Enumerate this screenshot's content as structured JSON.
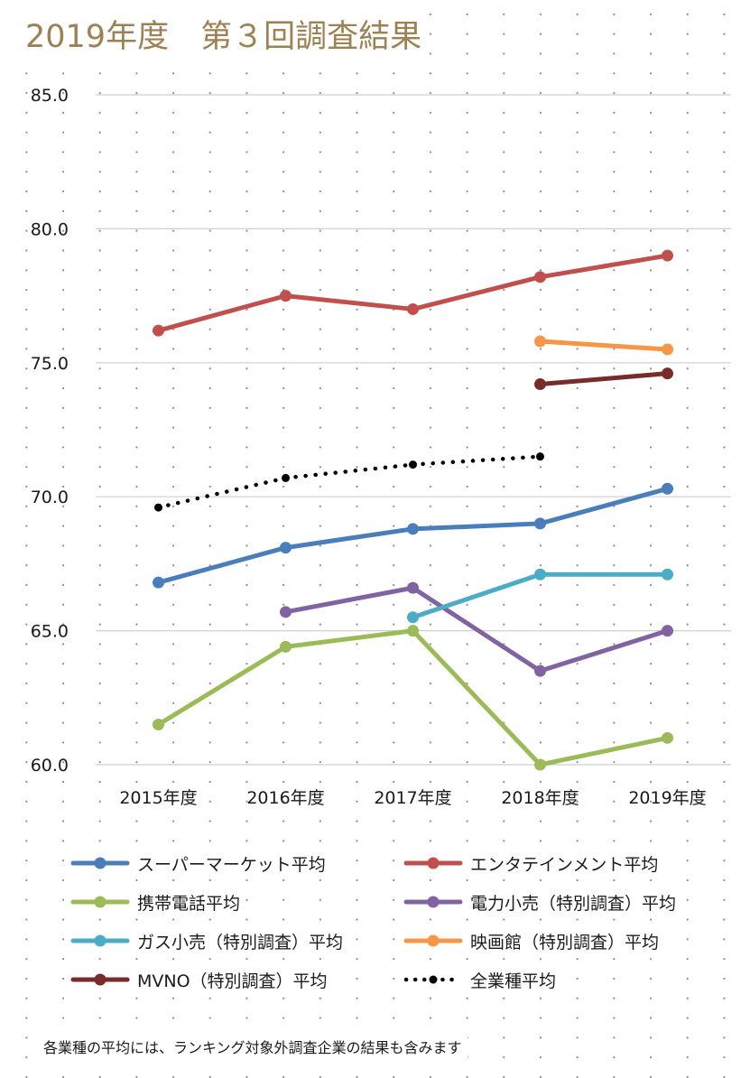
{
  "chart_data": {
    "type": "line",
    "title": "2019年度　第３回調査結果",
    "categories": [
      "2015年度",
      "2016年度",
      "2017年度",
      "2018年度",
      "2019年度"
    ],
    "ylim": [
      60.0,
      85.0
    ],
    "yticks": [
      "60.0",
      "65.0",
      "70.0",
      "75.0",
      "80.0",
      "85.0"
    ],
    "grid": true,
    "legend_position": "bottom",
    "series": [
      {
        "name": "スーパーマーケット平均",
        "color": "#4a7ebb",
        "style": "solid",
        "values": [
          66.8,
          68.1,
          68.8,
          69.0,
          70.3
        ]
      },
      {
        "name": "エンタテインメント平均",
        "color": "#c0504d",
        "style": "solid",
        "values": [
          76.2,
          77.5,
          77.0,
          78.2,
          79.0
        ]
      },
      {
        "name": "携帯電話平均",
        "color": "#9bbb59",
        "style": "solid",
        "values": [
          61.5,
          64.4,
          65.0,
          60.0,
          61.0
        ]
      },
      {
        "name": "電力小売（特別調査）平均",
        "color": "#8064a2",
        "style": "solid",
        "values": [
          null,
          65.7,
          66.6,
          63.5,
          65.0
        ]
      },
      {
        "name": "ガス小売（特別調査）平均",
        "color": "#4bacc6",
        "style": "solid",
        "values": [
          null,
          null,
          65.5,
          67.1,
          67.1
        ]
      },
      {
        "name": "映画館（特別調査）平均",
        "color": "#f79646",
        "style": "solid",
        "values": [
          null,
          null,
          null,
          75.8,
          75.5
        ]
      },
      {
        "name": "MVNO（特別調査）平均",
        "color": "#772c2a",
        "style": "solid",
        "values": [
          null,
          null,
          null,
          74.2,
          74.6
        ]
      },
      {
        "name": "全業種平均",
        "color": "#000000",
        "style": "dotted",
        "values": [
          69.6,
          70.7,
          71.2,
          71.5,
          null
        ]
      }
    ]
  },
  "footnote": "各業種の平均には、ランキング対象外調査企業の結果も含みます"
}
